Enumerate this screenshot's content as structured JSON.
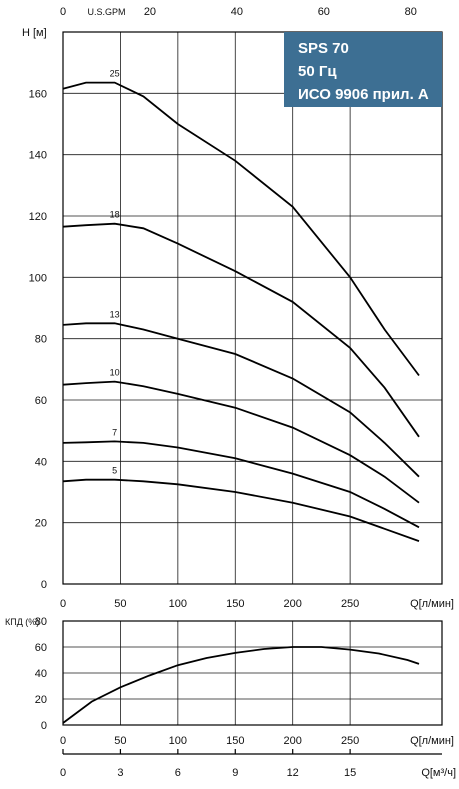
{
  "chart_data": [
    {
      "type": "line",
      "panel": "head",
      "ylabel": "H [м]",
      "xlabel": "Q[л/мин]",
      "x_top_label": "U.S.GPM",
      "xlim": [
        0,
        330
      ],
      "ylim": [
        0,
        180
      ],
      "x_ticks": [
        0,
        50,
        100,
        150,
        200,
        250
      ],
      "y_ticks": [
        0,
        20,
        40,
        60,
        80,
        100,
        120,
        140,
        160
      ],
      "x_top_ticks": [
        0,
        20,
        40,
        60,
        80
      ],
      "grid": true,
      "legend_box": {
        "lines": [
          "SPS 70",
          "50 Гц",
          "ИСО 9906 прил. А"
        ],
        "color": "#3d6f93",
        "placement": "top-right"
      },
      "series": [
        {
          "name": "25",
          "label_x": 45,
          "points": [
            [
              0,
              161.5
            ],
            [
              20,
              163.5
            ],
            [
              45,
              163.5
            ],
            [
              70,
              159
            ],
            [
              100,
              150
            ],
            [
              150,
              138
            ],
            [
              200,
              123
            ],
            [
              250,
              100
            ],
            [
              280,
              83
            ],
            [
              310,
              68
            ]
          ]
        },
        {
          "name": "18",
          "label_x": 45,
          "points": [
            [
              0,
              116.5
            ],
            [
              20,
              117
            ],
            [
              45,
              117.5
            ],
            [
              70,
              116
            ],
            [
              100,
              111
            ],
            [
              150,
              102
            ],
            [
              200,
              92
            ],
            [
              250,
              77
            ],
            [
              280,
              64
            ],
            [
              310,
              48
            ]
          ]
        },
        {
          "name": "13",
          "label_x": 45,
          "points": [
            [
              0,
              84.5
            ],
            [
              20,
              85
            ],
            [
              45,
              85
            ],
            [
              70,
              83
            ],
            [
              100,
              80
            ],
            [
              150,
              75
            ],
            [
              200,
              67
            ],
            [
              250,
              56
            ],
            [
              280,
              46
            ],
            [
              310,
              35
            ]
          ]
        },
        {
          "name": "10",
          "label_x": 45,
          "points": [
            [
              0,
              65
            ],
            [
              20,
              65.5
            ],
            [
              45,
              66
            ],
            [
              70,
              64.5
            ],
            [
              100,
              62
            ],
            [
              150,
              57.5
            ],
            [
              200,
              51
            ],
            [
              250,
              42
            ],
            [
              280,
              35
            ],
            [
              310,
              26.5
            ]
          ]
        },
        {
          "name": "7",
          "label_x": 45,
          "points": [
            [
              0,
              46
            ],
            [
              20,
              46.2
            ],
            [
              45,
              46.5
            ],
            [
              70,
              46
            ],
            [
              100,
              44.5
            ],
            [
              150,
              41
            ],
            [
              200,
              36
            ],
            [
              250,
              30
            ],
            [
              280,
              24.5
            ],
            [
              310,
              18.5
            ]
          ]
        },
        {
          "name": "5",
          "label_x": 45,
          "points": [
            [
              0,
              33.5
            ],
            [
              20,
              34
            ],
            [
              45,
              34
            ],
            [
              70,
              33.5
            ],
            [
              100,
              32.5
            ],
            [
              150,
              30
            ],
            [
              200,
              26.5
            ],
            [
              250,
              22
            ],
            [
              280,
              18
            ],
            [
              310,
              14
            ]
          ]
        }
      ]
    },
    {
      "type": "line",
      "panel": "efficiency",
      "ylabel": "КПД (%)",
      "xlabel": "Q[л/мин]",
      "xlabel2": "Q[м³/ч]",
      "xlim": [
        0,
        330
      ],
      "ylim": [
        0,
        80
      ],
      "x_ticks": [
        0,
        50,
        100,
        150,
        200,
        250
      ],
      "y_ticks": [
        0,
        20,
        40,
        60,
        80
      ],
      "x2_ticks": [
        0,
        3,
        6,
        9,
        12,
        15
      ],
      "grid": true,
      "series": [
        {
          "points": [
            [
              0,
              1.5
            ],
            [
              25,
              18
            ],
            [
              50,
              29
            ],
            [
              75,
              38
            ],
            [
              100,
              46
            ],
            [
              125,
              51.5
            ],
            [
              150,
              55.5
            ],
            [
              175,
              58.5
            ],
            [
              200,
              60
            ],
            [
              225,
              60
            ],
            [
              250,
              58
            ],
            [
              275,
              55
            ],
            [
              300,
              50
            ],
            [
              310,
              47
            ]
          ]
        }
      ]
    }
  ]
}
